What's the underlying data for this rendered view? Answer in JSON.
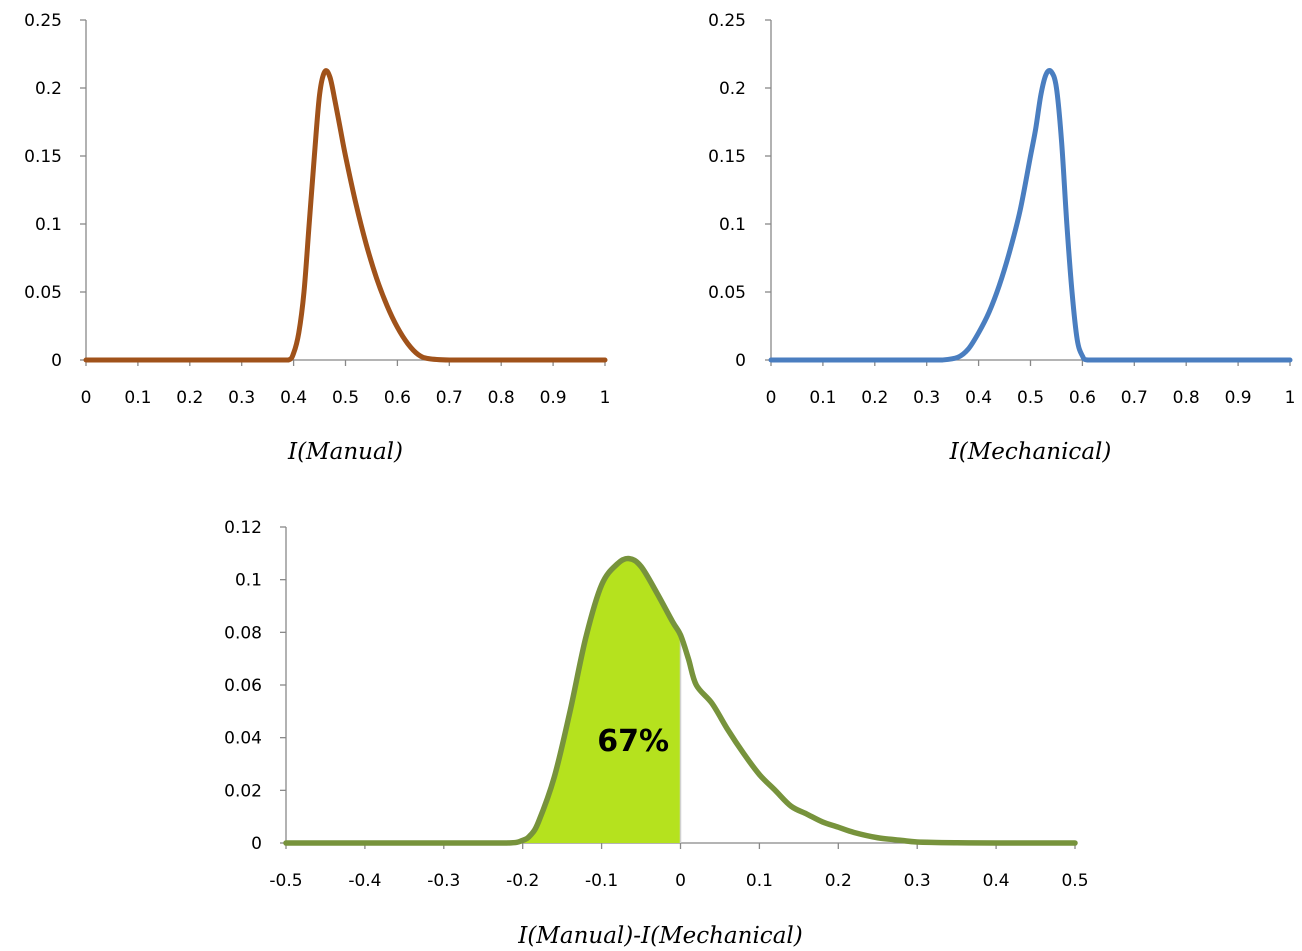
{
  "chart_data": [
    {
      "type": "line",
      "xlabel": "I(Manual)",
      "ylabel": "",
      "xlim": [
        0,
        1
      ],
      "ylim": [
        0,
        0.25
      ],
      "xticks": [
        "0",
        "0.1",
        "0.2",
        "0.3",
        "0.4",
        "0.5",
        "0.6",
        "0.7",
        "0.8",
        "0.9",
        "1"
      ],
      "yticks": [
        "0",
        "0.05",
        "0.1",
        "0.15",
        "0.2",
        "0.25"
      ],
      "grid": false,
      "color": "#A0521A",
      "series": [
        {
          "x": [
            0,
            0.1,
            0.2,
            0.3,
            0.36,
            0.39,
            0.4,
            0.41,
            0.42,
            0.43,
            0.44,
            0.45,
            0.46,
            0.47,
            0.48,
            0.49,
            0.5,
            0.52,
            0.54,
            0.56,
            0.58,
            0.6,
            0.62,
            0.64,
            0.66,
            0.7,
            0.8,
            0.9,
            1.0
          ],
          "y": [
            0,
            0,
            0,
            0,
            0,
            0,
            0.005,
            0.02,
            0.05,
            0.1,
            0.15,
            0.195,
            0.212,
            0.208,
            0.19,
            0.17,
            0.15,
            0.115,
            0.085,
            0.06,
            0.04,
            0.024,
            0.012,
            0.004,
            0.001,
            0,
            0,
            0,
            0
          ]
        }
      ]
    },
    {
      "type": "line",
      "xlabel": "I(Mechanical)",
      "ylabel": "",
      "xlim": [
        0,
        1
      ],
      "ylim": [
        0,
        0.25
      ],
      "xticks": [
        "0",
        "0.1",
        "0.2",
        "0.3",
        "0.4",
        "0.5",
        "0.6",
        "0.7",
        "0.8",
        "0.9",
        "1"
      ],
      "yticks": [
        "0",
        "0.05",
        "0.1",
        "0.15",
        "0.2",
        "0.25"
      ],
      "grid": false,
      "color": "#4A7EC0",
      "series": [
        {
          "x": [
            0,
            0.1,
            0.2,
            0.3,
            0.33,
            0.36,
            0.38,
            0.4,
            0.42,
            0.44,
            0.46,
            0.48,
            0.5,
            0.51,
            0.52,
            0.53,
            0.54,
            0.55,
            0.56,
            0.57,
            0.58,
            0.59,
            0.6,
            0.61,
            0.65,
            0.7,
            0.8,
            0.9,
            1.0
          ],
          "y": [
            0,
            0,
            0,
            0,
            0,
            0.002,
            0.008,
            0.02,
            0.035,
            0.055,
            0.08,
            0.11,
            0.15,
            0.17,
            0.195,
            0.21,
            0.212,
            0.2,
            0.16,
            0.1,
            0.05,
            0.015,
            0.003,
            0,
            0,
            0,
            0,
            0,
            0
          ]
        }
      ]
    },
    {
      "type": "area",
      "xlabel": "I(Manual)-I(Mechanical)",
      "ylabel": "",
      "xlim": [
        -0.5,
        0.5
      ],
      "ylim": [
        0,
        0.12
      ],
      "xticks": [
        "-0.5",
        "-0.4",
        "-0.3",
        "-0.2",
        "-0.1",
        "0",
        "0.1",
        "0.2",
        "0.3",
        "0.4",
        "0.5"
      ],
      "yticks": [
        "0",
        "0.02",
        "0.04",
        "0.06",
        "0.08",
        "0.1",
        "0.12"
      ],
      "grid": false,
      "color": "#77933C",
      "fill_color": "#B5E21E",
      "fill_range": [
        -0.2,
        0
      ],
      "annotation": "67%",
      "series": [
        {
          "x": [
            -0.5,
            -0.4,
            -0.3,
            -0.22,
            -0.2,
            -0.19,
            -0.18,
            -0.16,
            -0.14,
            -0.12,
            -0.1,
            -0.08,
            -0.065,
            -0.05,
            -0.03,
            -0.01,
            0,
            0.01,
            0.02,
            0.04,
            0.06,
            0.08,
            0.1,
            0.12,
            0.14,
            0.16,
            0.18,
            0.2,
            0.22,
            0.25,
            0.28,
            0.3,
            0.35,
            0.4,
            0.5
          ],
          "y": [
            0,
            0,
            0,
            0,
            0.001,
            0.003,
            0.008,
            0.025,
            0.05,
            0.078,
            0.098,
            0.106,
            0.108,
            0.105,
            0.095,
            0.084,
            0.079,
            0.07,
            0.06,
            0.053,
            0.043,
            0.034,
            0.026,
            0.02,
            0.014,
            0.011,
            0.008,
            0.006,
            0.004,
            0.002,
            0.001,
            0.0004,
            0.0001,
            0,
            0
          ]
        }
      ]
    }
  ]
}
